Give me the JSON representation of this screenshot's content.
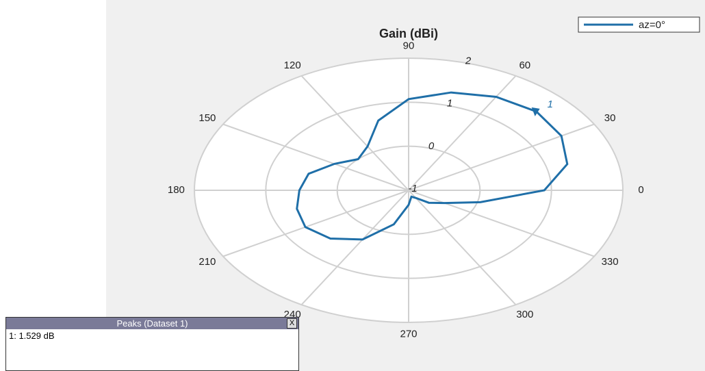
{
  "chart_data": {
    "type": "polar",
    "title": "Gain (dBi)",
    "x": [
      0,
      15,
      30,
      45,
      60,
      75,
      90,
      105,
      120,
      135,
      150,
      165,
      180,
      195,
      210,
      225,
      240,
      255,
      270,
      285,
      300,
      315,
      330,
      345
    ],
    "series": [
      {
        "name": "az=0°",
        "color": "#1f6fa8",
        "values": [
          0.9,
          1.3,
          1.47,
          1.53,
          1.45,
          1.3,
          1.07,
          0.64,
          0.15,
          0.0,
          0.2,
          0.45,
          0.53,
          0.62,
          0.67,
          0.55,
          0.29,
          -0.2,
          -0.67,
          -0.85,
          -0.8,
          -0.6,
          -0.42,
          0.04
        ]
      }
    ],
    "rlim": [
      -1,
      2
    ],
    "rticks": [
      -1,
      0,
      1,
      2
    ],
    "thetaticks": [
      0,
      30,
      60,
      90,
      120,
      150,
      180,
      210,
      240,
      270,
      300,
      330
    ],
    "peak_label": "1",
    "legend": "upper right",
    "grid": true
  },
  "peaks_panel": {
    "title": "Peaks (Dataset 1)",
    "close": "X",
    "text": "1: 1.529 dB"
  }
}
